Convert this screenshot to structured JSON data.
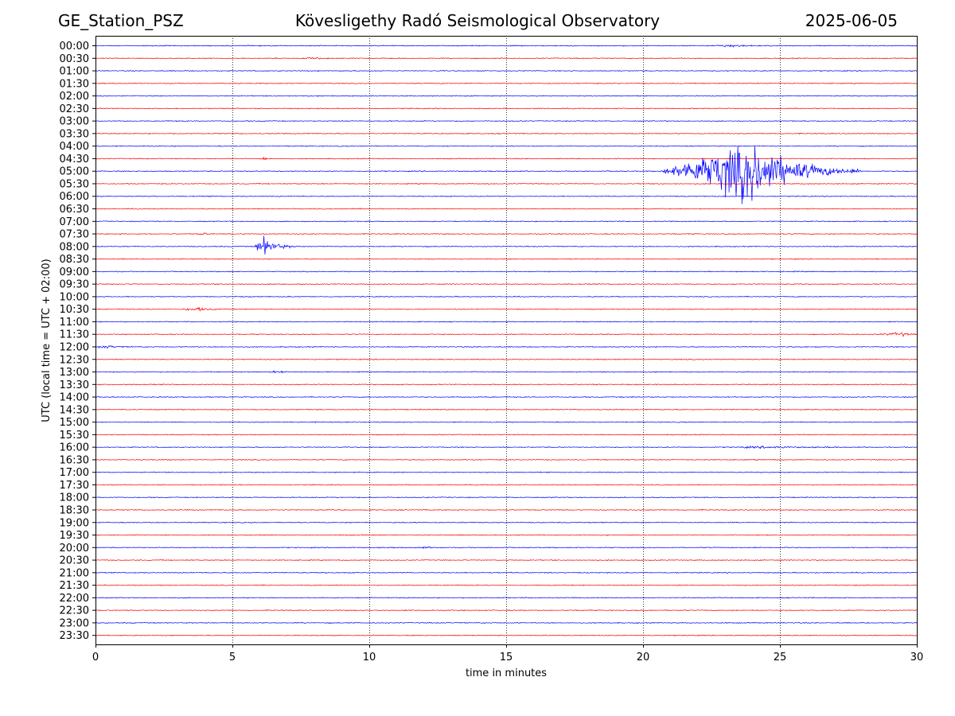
{
  "header": {
    "station": "GE_Station_PSZ",
    "observatory": "Kövesligethy Radó Seismological Observatory",
    "date": "2025-06-05"
  },
  "chart_data": {
    "type": "line",
    "title": "Kövesligethy Radó Seismological Observatory",
    "xlabel": "time in minutes",
    "ylabel": "UTC (local time = UTC + 02:00)",
    "xlim": [
      0,
      30
    ],
    "x_ticks": [
      "0",
      "5",
      "10",
      "15",
      "20",
      "25",
      "30"
    ],
    "x_tick_values": [
      0,
      5,
      10,
      15,
      20,
      25,
      30
    ],
    "grid": "vertical dotted at 5-minute ticks",
    "colors": {
      "even_rows": "#0000ff",
      "odd_rows": "#ff0000"
    },
    "rows": [
      "00:00",
      "00:30",
      "01:00",
      "01:30",
      "02:00",
      "02:30",
      "03:00",
      "03:30",
      "04:00",
      "04:30",
      "05:00",
      "05:30",
      "06:00",
      "06:30",
      "07:00",
      "07:30",
      "08:00",
      "08:30",
      "09:00",
      "09:30",
      "10:00",
      "10:30",
      "11:00",
      "11:30",
      "12:00",
      "12:30",
      "13:00",
      "13:30",
      "14:00",
      "14:30",
      "15:00",
      "15:30",
      "16:00",
      "16:30",
      "17:00",
      "17:30",
      "18:00",
      "18:30",
      "19:00",
      "19:30",
      "20:00",
      "20:30",
      "21:00",
      "21:30",
      "22:00",
      "22:30",
      "23:00",
      "23:30"
    ],
    "events": [
      {
        "row": "00:00",
        "start": 22.5,
        "peak": 23.2,
        "end": 24.5,
        "amplitude": 0.08
      },
      {
        "row": "00:30",
        "start": 7.5,
        "peak": 8.0,
        "end": 8.6,
        "amplitude": 0.06
      },
      {
        "row": "04:30",
        "start": 6.0,
        "peak": 6.2,
        "end": 6.5,
        "amplitude": 0.1
      },
      {
        "row": "05:00",
        "start": 20.6,
        "peak": 24.0,
        "end": 28.0,
        "amplitude": 2.3
      },
      {
        "row": "07:30",
        "start": 3.7,
        "peak": 4.0,
        "end": 4.4,
        "amplitude": 0.08
      },
      {
        "row": "08:00",
        "start": 5.8,
        "peak": 6.1,
        "end": 7.4,
        "amplitude": 0.7
      },
      {
        "row": "10:30",
        "start": 3.0,
        "peak": 3.8,
        "end": 4.8,
        "amplitude": 0.1
      },
      {
        "row": "11:30",
        "start": 28.5,
        "peak": 29.5,
        "end": 30.0,
        "amplitude": 0.12
      },
      {
        "row": "12:00",
        "start": 0.0,
        "peak": 0.4,
        "end": 1.5,
        "amplitude": 0.1
      },
      {
        "row": "13:00",
        "start": 6.3,
        "peak": 6.8,
        "end": 7.0,
        "amplitude": 0.1
      },
      {
        "row": "16:00",
        "start": 23.0,
        "peak": 24.5,
        "end": 28.0,
        "amplitude": 0.06
      },
      {
        "row": "20:00",
        "start": 11.5,
        "peak": 12.1,
        "end": 12.8,
        "amplitude": 0.05
      }
    ]
  }
}
